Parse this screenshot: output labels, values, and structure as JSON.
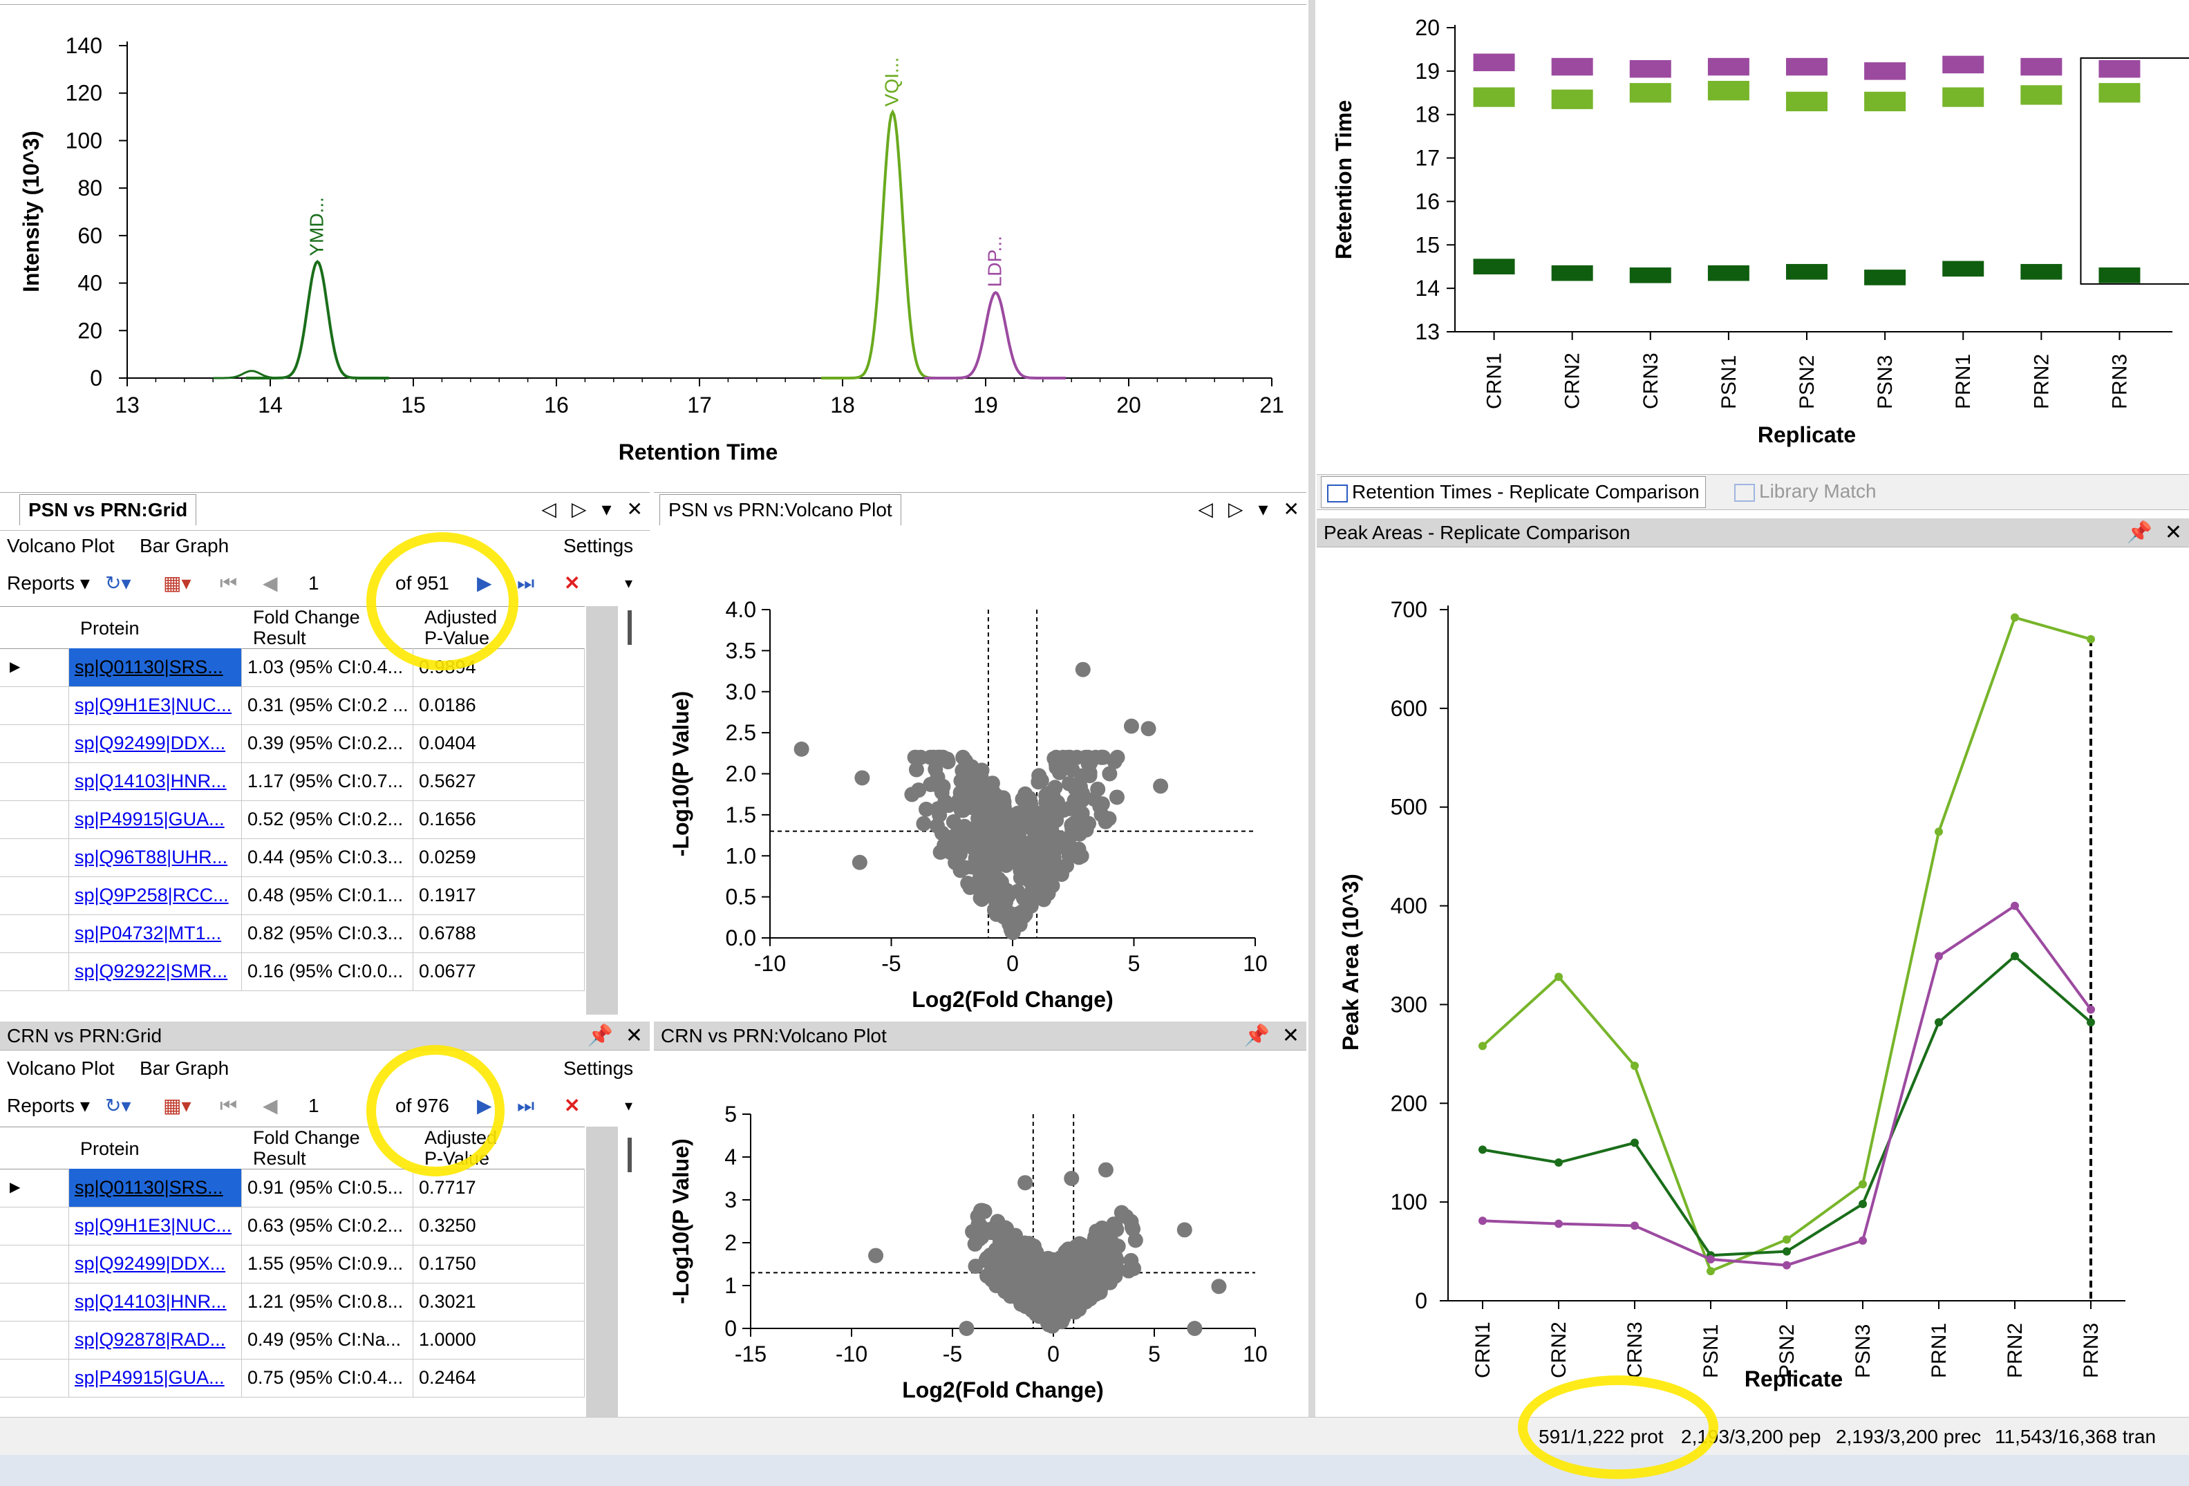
{
  "chromatogram": {
    "ylabel": "Intensity (10^3)",
    "xlabel": "Retention Time",
    "xticks": [
      "13",
      "14",
      "15",
      "16",
      "17",
      "18",
      "19",
      "20",
      "21"
    ],
    "yticks": [
      "0",
      "20",
      "40",
      "60",
      "80",
      "100",
      "120",
      "140"
    ],
    "peaks": [
      {
        "label": "YMD...",
        "color": "#1a6e1a",
        "rt": 14.33,
        "height": 49
      },
      {
        "label": "VQI...",
        "color": "#6aaa1e",
        "rt": 18.35,
        "height": 112
      },
      {
        "label": "LDP...",
        "color": "#9c4aa0",
        "rt": 19.07,
        "height": 36
      }
    ]
  },
  "rt_replicate": {
    "ylabel": "Retention Time",
    "xlabel": "Replicate",
    "yticks": [
      "13",
      "14",
      "15",
      "16",
      "17",
      "18",
      "19",
      "20"
    ],
    "categories": [
      "CRN1",
      "CRN2",
      "CRN3",
      "PSN1",
      "PSN2",
      "PSN3",
      "PRN1",
      "PRN2",
      "PRN3"
    ]
  },
  "psn_grid": {
    "title": "PSN vs PRN:Grid",
    "menu": {
      "volcano": "Volcano Plot",
      "bar": "Bar Graph",
      "settings": "Settings"
    },
    "toolbar": {
      "reports": "Reports",
      "page": "1",
      "of": "of 951"
    },
    "columns": [
      "Protein",
      "Fold Change Result",
      "Adjusted P-Value"
    ],
    "rows": [
      [
        "sp|Q01130|SRS...",
        "1.03 (95% CI:0.4...",
        "0.9894"
      ],
      [
        "sp|Q9H1E3|NUC...",
        "0.31 (95% CI:0.2 ...",
        "0.0186"
      ],
      [
        "sp|Q92499|DDX...",
        "0.39 (95% CI:0.2...",
        "0.0404"
      ],
      [
        "sp|Q14103|HNR...",
        "1.17 (95% CI:0.7...",
        "0.5627"
      ],
      [
        "sp|P49915|GUA...",
        "0.52 (95% CI:0.2...",
        "0.1656"
      ],
      [
        "sp|Q96T88|UHR...",
        "0.44 (95% CI:0.3...",
        "0.0259"
      ],
      [
        "sp|Q9P258|RCC...",
        "0.48 (95% CI:0.1...",
        "0.1917"
      ],
      [
        "sp|P04732|MT1...",
        "0.82 (95% CI:0.3...",
        "0.6788"
      ],
      [
        "sp|Q92922|SMR...",
        "0.16 (95% CI:0.0...",
        "0.0677"
      ]
    ]
  },
  "psn_volcano": {
    "title": "PSN vs PRN:Volcano Plot",
    "ylabel": "-Log10(P Value)",
    "xlabel": "Log2(Fold Change)",
    "xticks": [
      "-10",
      "-5",
      "0",
      "5",
      "10"
    ],
    "yticks": [
      "0.0",
      "0.5",
      "1.0",
      "1.5",
      "2.0",
      "2.5",
      "3.0",
      "3.5",
      "4.0"
    ]
  },
  "crn_grid": {
    "title": "CRN vs PRN:Grid",
    "menu": {
      "volcano": "Volcano Plot",
      "bar": "Bar Graph",
      "settings": "Settings"
    },
    "toolbar": {
      "reports": "Reports",
      "page": "1",
      "of": "of 976"
    },
    "columns": [
      "Protein",
      "Fold Change Result",
      "Adjusted P-Value"
    ],
    "rows": [
      [
        "sp|Q01130|SRS...",
        "0.91 (95% CI:0.5...",
        "0.7717"
      ],
      [
        "sp|Q9H1E3|NUC...",
        "0.63 (95% CI:0.2...",
        "0.3250"
      ],
      [
        "sp|Q92499|DDX...",
        "1.55 (95% CI:0.9...",
        "0.1750"
      ],
      [
        "sp|Q14103|HNR...",
        "1.21 (95% CI:0.8...",
        "0.3021"
      ],
      [
        "sp|Q92878|RAD...",
        "0.49 (95% CI:Na...",
        "1.0000"
      ],
      [
        "sp|P49915|GUA...",
        "0.75 (95% CI:0.4...",
        "0.2464"
      ]
    ]
  },
  "crn_volcano": {
    "title": "CRN vs PRN:Volcano Plot",
    "ylabel": "-Log10(P Value)",
    "xlabel": "Log2(Fold Change)",
    "xticks": [
      "-15",
      "-10",
      "-5",
      "0",
      "5",
      "10"
    ],
    "yticks": [
      "0",
      "1",
      "2",
      "3",
      "4",
      "5"
    ]
  },
  "right_tabs": {
    "tab1": "Retention Times - Replicate Comparison",
    "tab2": "Library Match"
  },
  "peak_areas": {
    "title": "Peak Areas - Replicate Comparison",
    "ylabel": "Peak Area (10^3)",
    "xlabel": "Replicate",
    "yticks": [
      "0",
      "100",
      "200",
      "300",
      "400",
      "500",
      "600",
      "700"
    ]
  },
  "chart_data": [
    {
      "type": "line",
      "title": "Peak Areas - Replicate Comparison",
      "xlabel": "Replicate",
      "ylabel": "Peak Area (10^3)",
      "ylim": [
        0,
        700
      ],
      "categories": [
        "CRN1",
        "CRN2",
        "CRN3",
        "PSN1",
        "PSN2",
        "PSN3",
        "PRN1",
        "PRN2",
        "PRN3"
      ],
      "series": [
        {
          "color": "#77b52a",
          "values": [
            258,
            328,
            238,
            30,
            62,
            118,
            475,
            692,
            670
          ]
        },
        {
          "color": "#1a6e1a",
          "values": [
            153,
            140,
            160,
            46,
            50,
            98,
            282,
            349,
            282
          ]
        },
        {
          "color": "#9c4aa0",
          "values": [
            81,
            78,
            76,
            42,
            36,
            61,
            349,
            400,
            295
          ]
        }
      ]
    },
    {
      "type": "scatter",
      "title": "Retention Times - Replicate Comparison",
      "xlabel": "Replicate",
      "ylabel": "Retention Time",
      "ylim": [
        13,
        20
      ],
      "categories": [
        "CRN1",
        "CRN2",
        "CRN3",
        "PSN1",
        "PSN2",
        "PSN3",
        "PRN1",
        "PRN2",
        "PRN3"
      ],
      "series": [
        {
          "color": "#9c4aa0",
          "values": [
            19.2,
            19.1,
            19.05,
            19.1,
            19.1,
            19.0,
            19.15,
            19.1,
            19.05
          ]
        },
        {
          "color": "#77b52a",
          "values": [
            18.4,
            18.35,
            18.5,
            18.55,
            18.3,
            18.3,
            18.4,
            18.45,
            18.5
          ]
        },
        {
          "color": "#0f5e0f",
          "values": [
            14.5,
            14.35,
            14.3,
            14.35,
            14.38,
            14.25,
            14.45,
            14.38,
            14.3
          ]
        }
      ]
    }
  ],
  "status": {
    "prot": "591/1,222 prot",
    "pep": "2,193/3,200 pep",
    "prec": "2,193/3,200 prec",
    "tran": "11,543/16,368 tran"
  }
}
